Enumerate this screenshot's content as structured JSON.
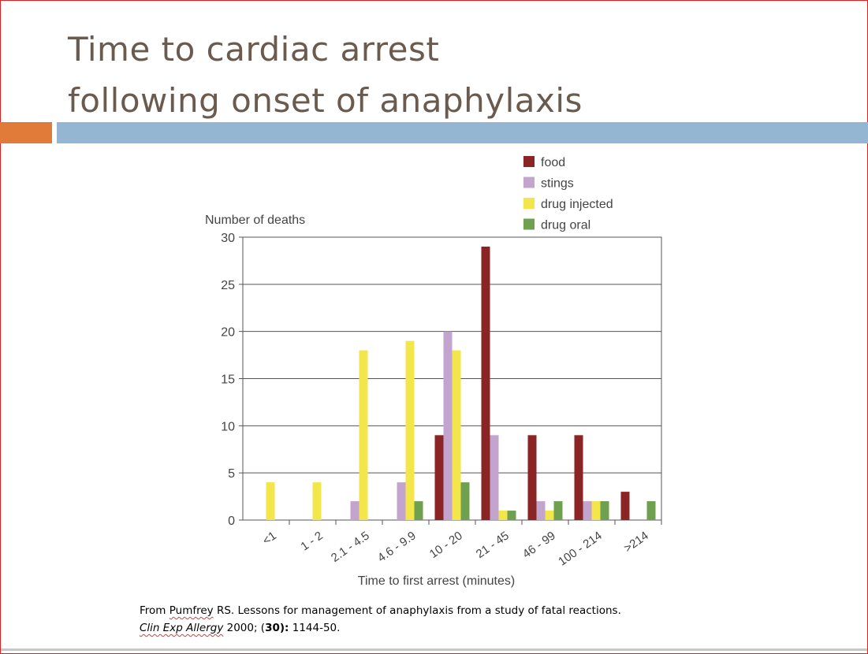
{
  "slide": {
    "title_line1": "Time to cardiac arrest",
    "title_line2": "following onset of anaphylaxis"
  },
  "citation": {
    "prefix": "From ",
    "author": "Pumfrey",
    "rest": " RS. Lessons for management of anaphylaxis from a study of fatal reactions.",
    "journal": "Clin Exp Allergy",
    "year": " 2000; (",
    "volume": "30",
    "pages_sep": "):",
    "pages": " 1144-50."
  },
  "colors": {
    "food": "#8b2525",
    "stings": "#c3a4cf",
    "drug_injected": "#f2e64a",
    "drug_oral": "#6fa050",
    "title_text": "#6b5a4e",
    "accent_orange": "#e07b3a",
    "accent_blue": "#94b6d2"
  },
  "chart_data": {
    "type": "bar",
    "ylabel": "Number of deaths",
    "xlabel": "Time to first arrest (minutes)",
    "ylim": [
      0,
      30
    ],
    "yticks": [
      0,
      5,
      10,
      15,
      20,
      25,
      30
    ],
    "grid": true,
    "legend_position": "top-right",
    "categories": [
      "<1",
      "1 - 2",
      "2.1 - 4.5",
      "4.6 - 9.9",
      "10 - 20",
      "21 - 45",
      "46 - 99",
      "100 - 214",
      ">214"
    ],
    "series": [
      {
        "name": "food",
        "color": "#8b2525",
        "values": [
          0,
          0,
          0,
          0,
          9,
          29,
          9,
          9,
          3
        ]
      },
      {
        "name": "stings",
        "color": "#c3a4cf",
        "values": [
          0,
          0,
          2,
          4,
          20,
          9,
          2,
          2,
          0
        ]
      },
      {
        "name": "drug injected",
        "color": "#f2e64a",
        "values": [
          4,
          4,
          18,
          19,
          18,
          1,
          1,
          2,
          0
        ]
      },
      {
        "name": "drug oral",
        "color": "#6fa050",
        "values": [
          0,
          0,
          0,
          2,
          4,
          1,
          2,
          2,
          2
        ]
      }
    ]
  }
}
